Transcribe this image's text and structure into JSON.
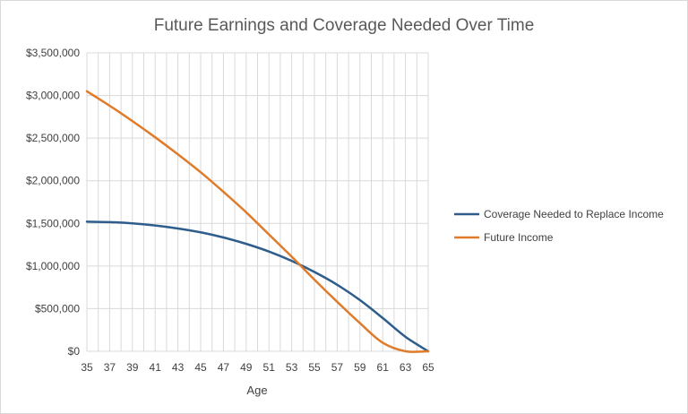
{
  "chart_data": {
    "type": "line",
    "title": "Future Earnings and Coverage Needed Over Time",
    "xlabel": "Age",
    "ylabel": "",
    "x": [
      35,
      37,
      39,
      41,
      43,
      45,
      47,
      49,
      51,
      53,
      55,
      57,
      59,
      61,
      63,
      65
    ],
    "x_tick_labels": [
      "35",
      "37",
      "39",
      "41",
      "43",
      "45",
      "47",
      "49",
      "51",
      "53",
      "55",
      "57",
      "59",
      "61",
      "63",
      "65"
    ],
    "y_tick_labels": [
      "$0",
      "$500,000",
      "$1,000,000",
      "$1,500,000",
      "$2,000,000",
      "$2,500,000",
      "$3,000,000",
      "$3,500,000"
    ],
    "ylim": [
      0,
      3500000
    ],
    "xlim": [
      35,
      65
    ],
    "grid": true,
    "legend_position": "right",
    "series": [
      {
        "name": "Coverage Needed to Replace Income",
        "color": "#2e5d8c",
        "values": [
          1520000,
          1515000,
          1500000,
          1475000,
          1440000,
          1395000,
          1335000,
          1260000,
          1170000,
          1060000,
          930000,
          780000,
          600000,
          390000,
          170000,
          0
        ]
      },
      {
        "name": "Future Income",
        "color": "#e07b2a",
        "values": [
          3050000,
          2880000,
          2700000,
          2510000,
          2310000,
          2100000,
          1870000,
          1630000,
          1370000,
          1110000,
          840000,
          580000,
          330000,
          100000,
          0,
          0
        ]
      }
    ]
  }
}
